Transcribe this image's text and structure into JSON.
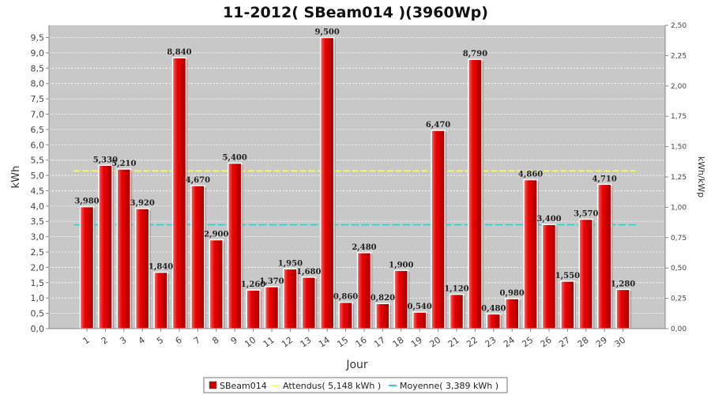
{
  "chart_data": {
    "type": "bar",
    "title": "11-2012( SBeam014 )(3960Wp)",
    "xlabel": "Jour",
    "ylabel": "kWh",
    "y2label": "kWh/kWp",
    "categories": [
      "1",
      "2",
      "3",
      "4",
      "5",
      "6",
      "7",
      "8",
      "9",
      "10",
      "11",
      "12",
      "13",
      "14",
      "15",
      "16",
      "17",
      "18",
      "19",
      "20",
      "21",
      "22",
      "23",
      "24",
      "25",
      "26",
      "27",
      "28",
      "29",
      "30"
    ],
    "series": [
      {
        "name": "SBeam014",
        "values": [
          3.98,
          5.33,
          5.21,
          3.92,
          1.84,
          8.84,
          4.67,
          2.9,
          5.4,
          1.26,
          1.37,
          1.95,
          1.68,
          9.5,
          0.86,
          2.48,
          0.82,
          1.9,
          0.54,
          6.47,
          1.12,
          8.79,
          0.48,
          0.98,
          4.86,
          3.4,
          1.55,
          3.57,
          4.71,
          1.28
        ],
        "labels": [
          "3,980",
          "5,330",
          "5,210",
          "3,920",
          "1,840",
          "8,840",
          "4,670",
          "2,900",
          "5,400",
          "1,260",
          "1,370",
          "1,950",
          "1,680",
          "9,500",
          "0,860",
          "2,480",
          "0,820",
          "1,900",
          "0,540",
          "6,470",
          "1,120",
          "8,790",
          "0,480",
          "0,980",
          "4,860",
          "3,400",
          "1,550",
          "3,570",
          "4,710",
          "1,280"
        ],
        "color": "#dd0000"
      }
    ],
    "reference_lines": [
      {
        "name": "Attendus",
        "value": 5.148,
        "color": "#ffff66",
        "legend": "Attendus( 5,148 kWh )"
      },
      {
        "name": "Moyenne",
        "value": 3.389,
        "color": "#33cccc",
        "legend": "Moyenne( 3,389 kWh )"
      }
    ],
    "legend_bar": "SBeam014",
    "ylim": [
      0,
      9.9
    ],
    "y_ticks": [
      "0,0",
      "0,5",
      "1,0",
      "1,5",
      "2,0",
      "2,5",
      "3,0",
      "3,5",
      "4,0",
      "4,5",
      "5,0",
      "5,5",
      "6,0",
      "6,5",
      "7,0",
      "7,5",
      "8,0",
      "8,5",
      "9,0",
      "9,5"
    ],
    "y2_ticks": [
      "0,00",
      "0,25",
      "0,50",
      "0,75",
      "1,00",
      "1,25",
      "1,50",
      "1,75",
      "2,00",
      "2,25",
      "2,50"
    ],
    "grid": true,
    "legend_position": "bottom",
    "colors": {
      "plot_bg": "#c8c8c8",
      "grid": "#ffffff",
      "bar": "#dd0000"
    }
  }
}
